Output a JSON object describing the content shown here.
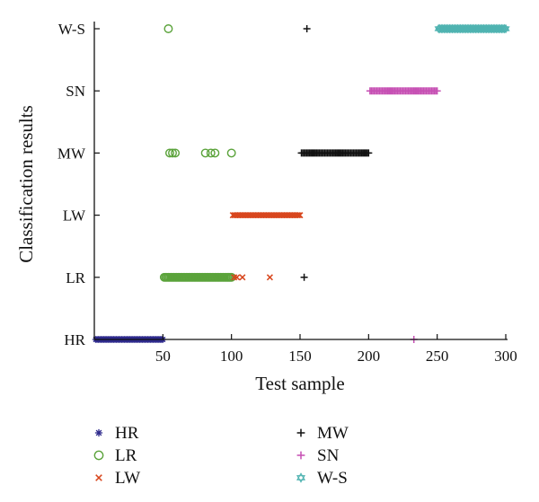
{
  "chart_data": {
    "type": "scatter",
    "xlabel": "Test sample",
    "ylabel": "Classification results",
    "xlim": [
      0,
      300
    ],
    "x_ticks": [
      50,
      100,
      150,
      200,
      250,
      300
    ],
    "categories": [
      "HR",
      "LR",
      "LW",
      "MW",
      "SN",
      "W-S"
    ],
    "grid": false,
    "legend_position": "bottom",
    "series": [
      {
        "name": "HR",
        "marker": "asterisk",
        "color": "#2E2A8C",
        "points": [
          {
            "x_range": [
              1,
              50
            ],
            "y": "HR"
          }
        ]
      },
      {
        "name": "LR",
        "marker": "circle",
        "color": "#5BA33B",
        "points": [
          {
            "x_range": [
              51,
              100
            ],
            "y": "LR"
          },
          {
            "x": 55,
            "y": "MW"
          },
          {
            "x": 57,
            "y": "MW"
          },
          {
            "x": 59,
            "y": "MW"
          },
          {
            "x": 81,
            "y": "MW"
          },
          {
            "x": 85,
            "y": "MW"
          },
          {
            "x": 88,
            "y": "MW"
          },
          {
            "x": 100,
            "y": "MW"
          },
          {
            "x": 54,
            "y": "W-S"
          }
        ]
      },
      {
        "name": "LW",
        "marker": "x",
        "color": "#D8471E",
        "points": [
          {
            "x_range": [
              101,
              150
            ],
            "y": "LW"
          },
          {
            "x": 102,
            "y": "LR"
          },
          {
            "x": 104,
            "y": "LR"
          },
          {
            "x": 108,
            "y": "LR"
          },
          {
            "x": 128,
            "y": "LR"
          }
        ]
      },
      {
        "name": "MW",
        "marker": "plus",
        "color": "#111111",
        "points": [
          {
            "x_range": [
              151,
              200
            ],
            "y": "MW"
          },
          {
            "x": 153,
            "y": "LR"
          },
          {
            "x": 155,
            "y": "W-S"
          }
        ]
      },
      {
        "name": "SN",
        "marker": "plus",
        "color": "#C64FB3",
        "points": [
          {
            "x_range": [
              201,
              250
            ],
            "y": "SN"
          },
          {
            "x": 233,
            "y": "HR"
          }
        ]
      },
      {
        "name": "W-S",
        "marker": "hexagram",
        "color": "#4FB3B1",
        "points": [
          {
            "x_range": [
              251,
              300
            ],
            "y": "W-S"
          }
        ]
      }
    ]
  }
}
